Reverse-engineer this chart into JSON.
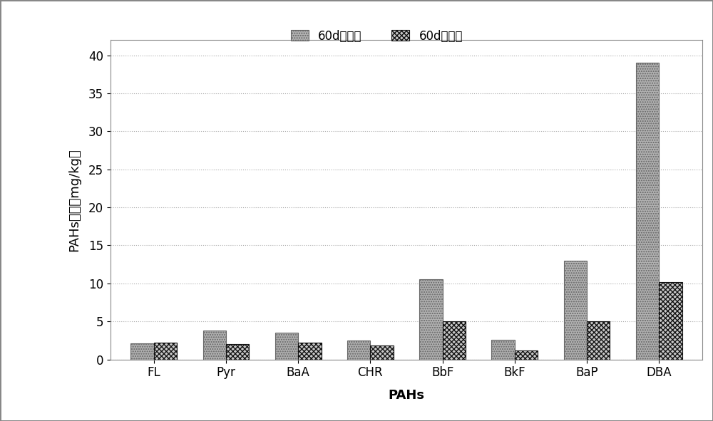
{
  "categories": [
    "FL",
    "Pyr",
    "BaA",
    "CHR",
    "BbF",
    "BkF",
    "BaP",
    "DBA"
  ],
  "before_planting": [
    2.1,
    3.8,
    3.5,
    2.5,
    10.5,
    2.6,
    13.0,
    39.0
  ],
  "after_planting": [
    2.2,
    2.0,
    2.2,
    1.8,
    5.0,
    1.2,
    5.0,
    10.2
  ],
  "legend_before": "60d种植前",
  "legend_after": "60d种植后",
  "xlabel": "PAHs",
  "ylabel": "PAHs浓度（mg/kg）",
  "ylim": [
    0,
    42
  ],
  "yticks": [
    0,
    5,
    10,
    15,
    20,
    25,
    30,
    35,
    40
  ],
  "bar_width": 0.32,
  "color_before": "#b8b8b8",
  "color_after": "#cccccc",
  "hatch_before": ".....",
  "hatch_after": "XXXXX",
  "grid_color": "#aaaaaa",
  "tick_fontsize": 12,
  "axis_label_fontsize": 13,
  "legend_fontsize": 12
}
